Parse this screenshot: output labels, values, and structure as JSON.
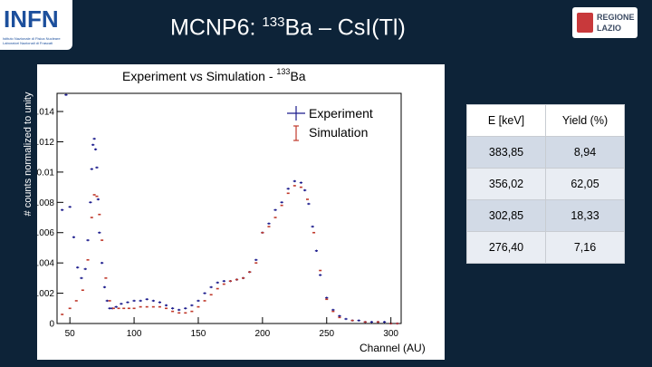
{
  "slide": {
    "title_main": "MCNP6: ",
    "title_sup": "133",
    "title_rest": "Ba – CsI(Tl)"
  },
  "logos": {
    "left_text": "INFN",
    "left_sub1": "Istituto Nazionale di Fisica Nucleare",
    "left_sub2": "Laboratori Nazionali di Frascati",
    "right_line1": "REGIONE",
    "right_line2": "LAZIO"
  },
  "chart_data": {
    "type": "scatter",
    "title": "Experiment vs Simulation - ",
    "title_sup": "133",
    "title_end": "Ba",
    "xlabel": "Channel (AU)",
    "ylabel": "# counts normalized to unity",
    "xlim": [
      40,
      308
    ],
    "ylim": [
      0,
      0.0152
    ],
    "xticks": [
      50,
      100,
      150,
      200,
      250,
      300
    ],
    "yticks": [
      0,
      0.002,
      0.004,
      0.006,
      0.008,
      0.01,
      0.012,
      0.014
    ],
    "ytick_labels": [
      "0",
      "0.002",
      "0.004",
      "0.006",
      "0.008",
      "0.01",
      "0.012",
      "0.014"
    ],
    "grid": false,
    "legend_position": "top-right",
    "series": [
      {
        "name": "Experiment",
        "color": "#1a1a8c",
        "x": [
          44,
          47,
          50,
          53,
          56,
          59,
          62,
          64,
          66,
          67,
          68,
          69,
          70,
          71,
          72,
          73,
          75,
          77,
          79,
          81,
          83,
          86,
          90,
          95,
          100,
          105,
          110,
          115,
          120,
          125,
          130,
          135,
          140,
          145,
          150,
          155,
          160,
          165,
          170,
          175,
          180,
          185,
          190,
          195,
          200,
          205,
          210,
          215,
          220,
          225,
          230,
          233,
          236,
          239,
          242,
          245,
          250,
          255,
          260,
          265,
          270,
          275,
          280,
          285,
          290,
          295,
          300,
          305
        ],
        "y": [
          0.0075,
          0.0151,
          0.0077,
          0.0057,
          0.0037,
          0.003,
          0.0036,
          0.0055,
          0.008,
          0.0102,
          0.0118,
          0.0122,
          0.0115,
          0.0103,
          0.0082,
          0.006,
          0.004,
          0.0024,
          0.0015,
          0.001,
          0.001,
          0.0011,
          0.0013,
          0.0014,
          0.0015,
          0.0015,
          0.0016,
          0.0015,
          0.0014,
          0.0012,
          0.001,
          0.0009,
          0.001,
          0.0012,
          0.0015,
          0.002,
          0.0024,
          0.0027,
          0.0028,
          0.0028,
          0.0029,
          0.003,
          0.0034,
          0.0042,
          0.006,
          0.0066,
          0.0075,
          0.008,
          0.0089,
          0.0094,
          0.0093,
          0.0088,
          0.0079,
          0.0064,
          0.0048,
          0.0032,
          0.0017,
          0.0009,
          0.0005,
          0.0003,
          0.0002,
          0.0002,
          0.0001,
          0.0001,
          0.0001,
          0.0001,
          0.0,
          0.0
        ]
      },
      {
        "name": "Simulation",
        "color": "#c0392b",
        "x": [
          44,
          50,
          55,
          60,
          64,
          67,
          69,
          71,
          73,
          75,
          78,
          81,
          84,
          88,
          92,
          96,
          100,
          105,
          110,
          115,
          120,
          125,
          130,
          135,
          140,
          145,
          150,
          155,
          160,
          165,
          170,
          175,
          180,
          185,
          190,
          195,
          200,
          205,
          210,
          215,
          220,
          225,
          230,
          235,
          240,
          245,
          250,
          255,
          260,
          270,
          280,
          290,
          300,
          305
        ],
        "y": [
          0.0006,
          0.001,
          0.0015,
          0.0022,
          0.0042,
          0.007,
          0.0085,
          0.0084,
          0.0072,
          0.0055,
          0.003,
          0.0015,
          0.001,
          0.001,
          0.001,
          0.001,
          0.001,
          0.0011,
          0.0011,
          0.0011,
          0.0011,
          0.001,
          0.0008,
          0.0007,
          0.0007,
          0.0008,
          0.0011,
          0.0015,
          0.0019,
          0.0023,
          0.0026,
          0.0028,
          0.0029,
          0.003,
          0.0034,
          0.004,
          0.006,
          0.0064,
          0.007,
          0.0078,
          0.0086,
          0.0091,
          0.009,
          0.0082,
          0.006,
          0.0035,
          0.0016,
          0.0008,
          0.0004,
          0.0002,
          0.0001,
          0.0001,
          0.0,
          0.0
        ]
      }
    ]
  },
  "table": {
    "headers": [
      "E [keV]",
      "Yield (%)"
    ],
    "rows": [
      [
        "383,85",
        "8,94"
      ],
      [
        "356,02",
        "62,05"
      ],
      [
        "302,85",
        "18,33"
      ],
      [
        "276,40",
        "7,16"
      ]
    ]
  }
}
